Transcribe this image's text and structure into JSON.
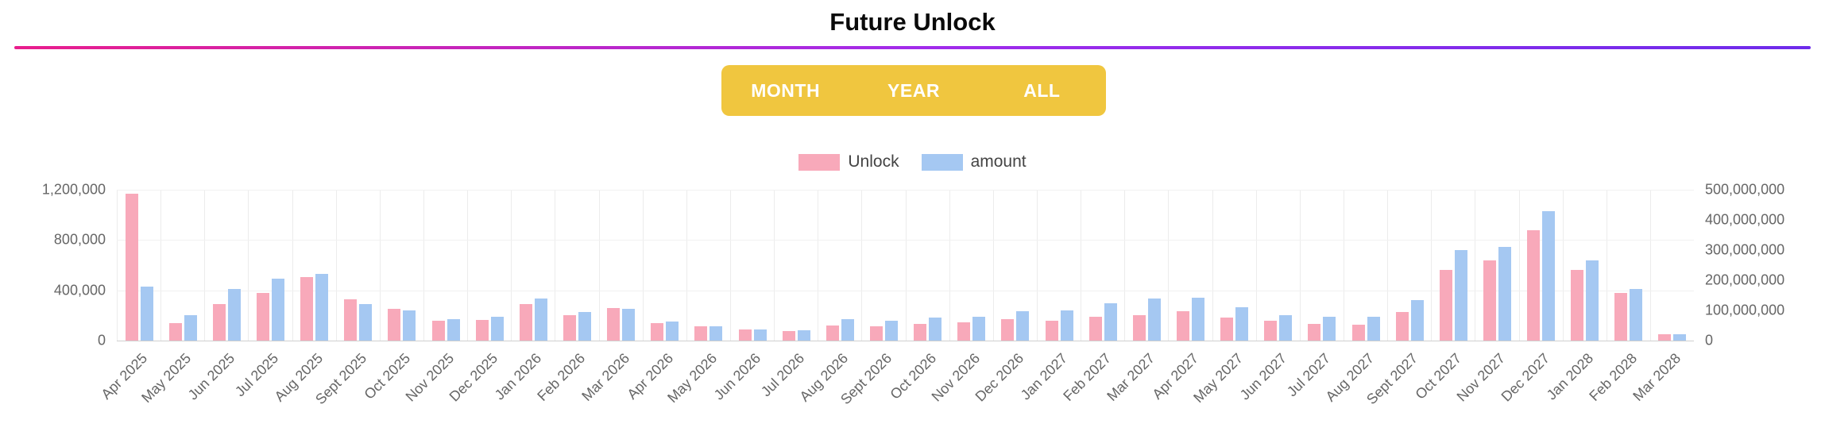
{
  "page": {
    "title": "Future Unlock"
  },
  "theme": {
    "divider_gradient": [
      "#E91E8C",
      "#A22BEB",
      "#6E2BEB"
    ],
    "toggle_bg": "#F0C63F",
    "toggle_text": "#FFFFFF",
    "unlock_color": "#F8A9BA",
    "amount_color": "#A5C8F2"
  },
  "toggle": {
    "options": [
      {
        "label": "MONTH"
      },
      {
        "label": "YEAR"
      },
      {
        "label": "ALL"
      }
    ]
  },
  "chart_data": {
    "type": "bar",
    "title": "Future Unlock",
    "xlabel": "",
    "ylabel": "",
    "grid": true,
    "legend_position": "top",
    "categories": [
      "Apr 2025",
      "May 2025",
      "Jun 2025",
      "Jul 2025",
      "Aug 2025",
      "Sept 2025",
      "Oct 2025",
      "Nov 2025",
      "Dec 2025",
      "Jan 2026",
      "Feb 2026",
      "Mar 2026",
      "Apr 2026",
      "May 2026",
      "Jun 2026",
      "Jul 2026",
      "Aug 2026",
      "Sept 2026",
      "Oct 2026",
      "Nov 2026",
      "Dec 2026",
      "Jan 2027",
      "Feb 2027",
      "Mar 2027",
      "Apr 2027",
      "May 2027",
      "Jun 2027",
      "Jul 2027",
      "Aug 2027",
      "Sept 2027",
      "Oct 2027",
      "Nov 2027",
      "Dec 2027",
      "Jan 2028",
      "Feb 2028",
      "Mar 2028"
    ],
    "series": [
      {
        "name": "Unlock",
        "axis": "left",
        "color": "#F8A9BA",
        "values": [
          1170000,
          140000,
          290000,
          380000,
          505000,
          330000,
          250000,
          160000,
          165000,
          290000,
          200000,
          260000,
          140000,
          115000,
          90000,
          75000,
          120000,
          115000,
          130000,
          145000,
          170000,
          160000,
          190000,
          200000,
          235000,
          185000,
          155000,
          130000,
          125000,
          230000,
          560000,
          640000,
          880000,
          560000,
          380000,
          50000
        ]
      },
      {
        "name": "amount",
        "axis": "right",
        "color": "#A5C8F2",
        "values": [
          180000000,
          85000000,
          170000000,
          205000000,
          220000000,
          120000000,
          100000000,
          72000000,
          78000000,
          140000000,
          95000000,
          105000000,
          62000000,
          48000000,
          38000000,
          35000000,
          72000000,
          65000000,
          76000000,
          80000000,
          98000000,
          100000000,
          125000000,
          140000000,
          142000000,
          110000000,
          85000000,
          80000000,
          78000000,
          135000000,
          300000000,
          310000000,
          430000000,
          265000000,
          170000000,
          22000000
        ]
      }
    ],
    "left_axis": {
      "max": 1200000,
      "ticks": [
        "1,200,000",
        "800,000",
        "400,000",
        "0"
      ]
    },
    "right_axis": {
      "max": 500000000,
      "ticks": [
        "500,000,000",
        "400,000,000",
        "300,000,000",
        "200,000,000",
        "100,000,000",
        "0"
      ]
    }
  }
}
